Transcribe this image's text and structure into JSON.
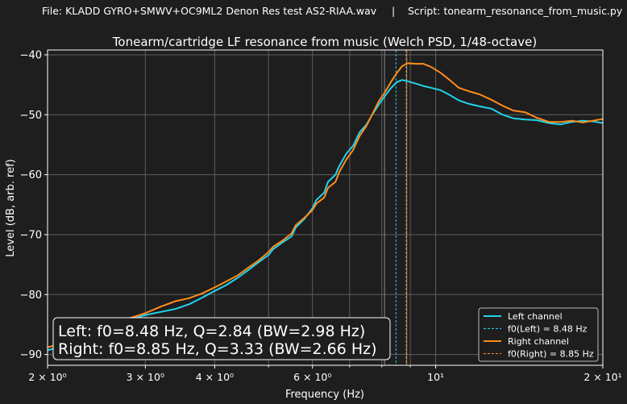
{
  "header": {
    "file_text": "File: KLADD GYRO+SMWV+OC9ML2  Denon Res test AS2-RIAA.wav",
    "separator": "|",
    "script_text": "Script: tonearm_resonance_from_music.py"
  },
  "chart_data": {
    "type": "line",
    "title": "Tonearm/cartridge LF resonance from music (Welch PSD, 1/48-octave)",
    "xlabel": "Frequency (Hz)",
    "ylabel": "Level (dB, arb. ref)",
    "x_scale": "log",
    "xlim": [
      2,
      20
    ],
    "ylim": [
      -91.8,
      -39.2
    ],
    "grid": true,
    "x_ticks": [
      {
        "value": 2,
        "label": "2 × 10⁰"
      },
      {
        "value": 3,
        "label": "3 × 10⁰"
      },
      {
        "value": 4,
        "label": "4 × 10⁰"
      },
      {
        "value": 6,
        "label": "6 × 10⁰"
      },
      {
        "value": 10,
        "label": "10¹"
      },
      {
        "value": 20,
        "label": "2 × 10¹"
      }
    ],
    "x_minor_ticks": [
      5,
      7,
      8,
      9
    ],
    "y_ticks": [
      {
        "value": -40,
        "label": "−40"
      },
      {
        "value": -50,
        "label": "−50"
      },
      {
        "value": -60,
        "label": "−60"
      },
      {
        "value": -70,
        "label": "−70"
      },
      {
        "value": -80,
        "label": "−80"
      },
      {
        "value": -90,
        "label": "−90"
      }
    ],
    "series": [
      {
        "name": "Left channel",
        "color": "#22d3ee",
        "points": [
          [
            2.0,
            -89.3
          ],
          [
            2.2,
            -88.3
          ],
          [
            2.4,
            -86.9
          ],
          [
            2.6,
            -85.3
          ],
          [
            2.8,
            -84.3
          ],
          [
            3.0,
            -83.4
          ],
          [
            3.2,
            -82.9
          ],
          [
            3.4,
            -82.4
          ],
          [
            3.6,
            -81.6
          ],
          [
            3.8,
            -80.5
          ],
          [
            4.0,
            -79.4
          ],
          [
            4.2,
            -78.4
          ],
          [
            4.4,
            -77.2
          ],
          [
            4.6,
            -75.9
          ],
          [
            4.8,
            -74.6
          ],
          [
            5.0,
            -73.4
          ],
          [
            5.1,
            -72.4
          ],
          [
            5.3,
            -71.3
          ],
          [
            5.5,
            -70.3
          ],
          [
            5.6,
            -68.8
          ],
          [
            5.8,
            -67.4
          ],
          [
            6.0,
            -65.6
          ],
          [
            6.1,
            -64.2
          ],
          [
            6.3,
            -63.0
          ],
          [
            6.4,
            -61.2
          ],
          [
            6.6,
            -60.0
          ],
          [
            6.7,
            -58.6
          ],
          [
            6.9,
            -56.5
          ],
          [
            7.1,
            -55.2
          ],
          [
            7.3,
            -52.9
          ],
          [
            7.5,
            -51.7
          ],
          [
            7.7,
            -49.9
          ],
          [
            7.9,
            -48.3
          ],
          [
            8.1,
            -46.9
          ],
          [
            8.3,
            -45.6
          ],
          [
            8.5,
            -44.6
          ],
          [
            8.7,
            -44.2
          ],
          [
            8.9,
            -44.4
          ],
          [
            9.2,
            -44.8
          ],
          [
            9.5,
            -45.2
          ],
          [
            9.8,
            -45.5
          ],
          [
            10.2,
            -45.9
          ],
          [
            10.6,
            -46.7
          ],
          [
            11.0,
            -47.6
          ],
          [
            11.5,
            -48.2
          ],
          [
            12.0,
            -48.6
          ],
          [
            12.6,
            -49.0
          ],
          [
            13.2,
            -50.0
          ],
          [
            13.8,
            -50.6
          ],
          [
            14.5,
            -50.8
          ],
          [
            15.2,
            -50.9
          ],
          [
            16.0,
            -51.4
          ],
          [
            16.8,
            -51.6
          ],
          [
            17.6,
            -51.2
          ],
          [
            18.4,
            -51.0
          ],
          [
            19.2,
            -51.1
          ],
          [
            20.0,
            -51.4
          ]
        ]
      },
      {
        "name": "Right channel",
        "color": "#ff8c1a",
        "points": [
          [
            2.0,
            -88.8
          ],
          [
            2.2,
            -87.8
          ],
          [
            2.4,
            -86.4
          ],
          [
            2.6,
            -85.0
          ],
          [
            2.8,
            -84.0
          ],
          [
            3.0,
            -83.1
          ],
          [
            3.2,
            -82.0
          ],
          [
            3.4,
            -81.1
          ],
          [
            3.6,
            -80.6
          ],
          [
            3.8,
            -79.8
          ],
          [
            4.0,
            -78.8
          ],
          [
            4.2,
            -77.8
          ],
          [
            4.4,
            -76.8
          ],
          [
            4.6,
            -75.5
          ],
          [
            4.8,
            -74.3
          ],
          [
            5.0,
            -72.9
          ],
          [
            5.1,
            -72.0
          ],
          [
            5.3,
            -71.0
          ],
          [
            5.5,
            -69.8
          ],
          [
            5.6,
            -68.4
          ],
          [
            5.8,
            -67.2
          ],
          [
            6.0,
            -65.9
          ],
          [
            6.1,
            -64.8
          ],
          [
            6.3,
            -63.8
          ],
          [
            6.4,
            -62.2
          ],
          [
            6.6,
            -61.2
          ],
          [
            6.7,
            -59.6
          ],
          [
            6.9,
            -57.5
          ],
          [
            7.1,
            -55.9
          ],
          [
            7.3,
            -53.5
          ],
          [
            7.5,
            -51.9
          ],
          [
            7.7,
            -49.8
          ],
          [
            7.9,
            -47.7
          ],
          [
            8.1,
            -46.3
          ],
          [
            8.3,
            -44.6
          ],
          [
            8.5,
            -43.1
          ],
          [
            8.7,
            -41.9
          ],
          [
            8.9,
            -41.4
          ],
          [
            9.2,
            -41.5
          ],
          [
            9.5,
            -41.5
          ],
          [
            9.8,
            -42.0
          ],
          [
            10.2,
            -43.0
          ],
          [
            10.6,
            -44.2
          ],
          [
            11.0,
            -45.5
          ],
          [
            11.5,
            -46.1
          ],
          [
            12.0,
            -46.6
          ],
          [
            12.6,
            -47.5
          ],
          [
            13.2,
            -48.5
          ],
          [
            13.8,
            -49.3
          ],
          [
            14.5,
            -49.6
          ],
          [
            15.2,
            -50.5
          ],
          [
            16.0,
            -51.2
          ],
          [
            16.8,
            -51.2
          ],
          [
            17.6,
            -51.0
          ],
          [
            18.4,
            -51.3
          ],
          [
            19.2,
            -51.0
          ],
          [
            20.0,
            -50.7
          ]
        ]
      }
    ],
    "vlines": [
      {
        "name": "f0(Left) = 8.48 Hz",
        "x": 8.48,
        "color": "#22d3ee"
      },
      {
        "name": "f0(Right) = 8.85 Hz",
        "x": 8.85,
        "color": "#ff8c1a"
      }
    ],
    "grey_vlines": [
      8.09,
      8.87
    ],
    "legend": {
      "placement": "lower right",
      "entries": [
        {
          "label": "Left channel",
          "color": "#22d3ee",
          "style": "solid"
        },
        {
          "label": "f0(Left) = 8.48 Hz",
          "color": "#22d3ee",
          "style": "dashed"
        },
        {
          "label": "Right channel",
          "color": "#ff8c1a",
          "style": "solid"
        },
        {
          "label": "f0(Right) = 8.85 Hz",
          "color": "#ff8c1a",
          "style": "dashed"
        }
      ]
    },
    "annotation": {
      "placement": "lower left",
      "lines": [
        "Left: f0=8.48 Hz, Q=2.84 (BW=2.98 Hz)",
        "Right: f0=8.85 Hz, Q=3.33 (BW=2.66 Hz)"
      ]
    }
  }
}
